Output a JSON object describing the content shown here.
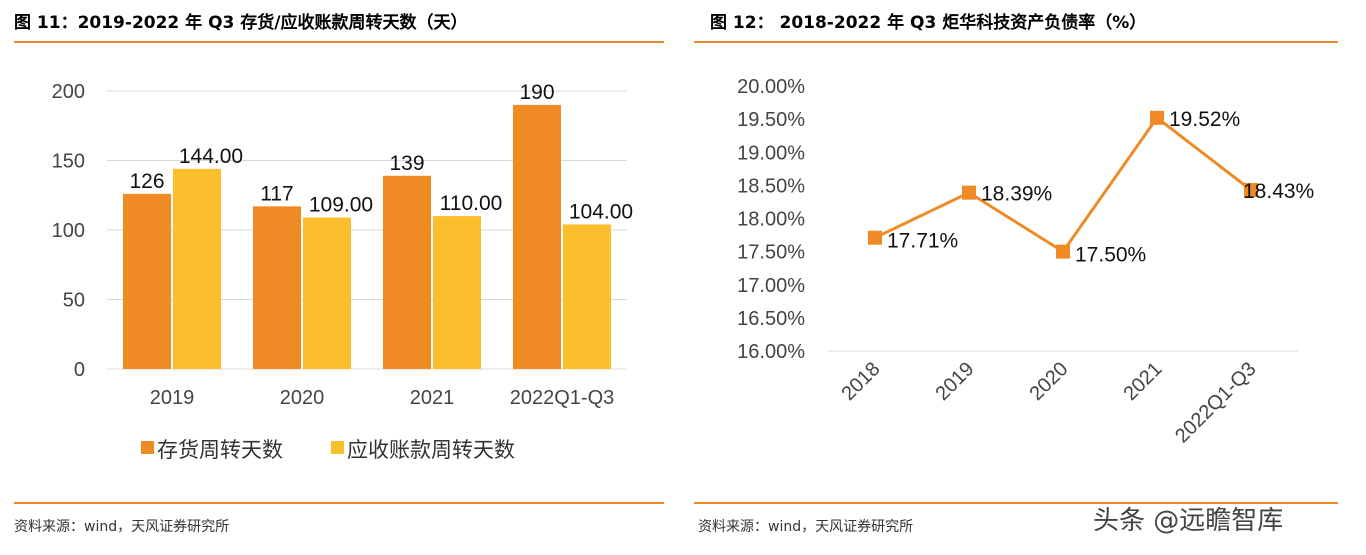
{
  "charts": {
    "left": {
      "title": "图 11：2019-2022 年 Q3 存货/应收账款周转天数（天）",
      "source": "资料来源：wind，天风证券研究所"
    },
    "right": {
      "title": "图 12：  2018-2022 年 Q3 炬华科技资产负债率（%）",
      "source": "资料来源：wind，天风证券研究所"
    }
  },
  "watermark": "头条 @远瞻智库",
  "colors": {
    "accent_orange": "#F08A24",
    "accent_yellow": "#FBBF2D",
    "rule": "#E8892B",
    "line": "#F08A24"
  },
  "chart_data": [
    {
      "type": "bar",
      "title": "图 11：2019-2022 年 Q3 存货/应收账款周转天数（天）",
      "categories": [
        "2019",
        "2020",
        "2021",
        "2022Q1-Q3"
      ],
      "series": [
        {
          "name": "存货周转天数",
          "values": [
            126,
            117,
            139,
            190
          ],
          "labels": [
            "126",
            "117",
            "139",
            "190"
          ],
          "color": "#F08A24"
        },
        {
          "name": "应收账款周转天数",
          "values": [
            144,
            109,
            110,
            104
          ],
          "labels": [
            "144.00",
            "109.00",
            "110.00",
            "104.00"
          ],
          "color": "#FBBF2D"
        }
      ],
      "yticks": [
        "0",
        "50",
        "100",
        "150",
        "200"
      ],
      "ylim": [
        0,
        200
      ],
      "grid": true,
      "legend_position": "bottom"
    },
    {
      "type": "line",
      "title": "图 12：  2018-2022 年 Q3 炬华科技资产负债率（%）",
      "categories": [
        "2018",
        "2019",
        "2020",
        "2021",
        "2022Q1-Q3"
      ],
      "values": [
        17.71,
        18.39,
        17.5,
        19.52,
        18.43
      ],
      "labels": [
        "17.71%",
        "18.39%",
        "17.50%",
        "19.52%",
        "18.43%"
      ],
      "yticks": [
        "16.00%",
        "16.50%",
        "17.00%",
        "17.50%",
        "18.00%",
        "18.50%",
        "19.00%",
        "19.50%",
        "20.00%"
      ],
      "ylim": [
        16.0,
        20.0
      ],
      "grid": false,
      "color": "#F08A24"
    }
  ]
}
